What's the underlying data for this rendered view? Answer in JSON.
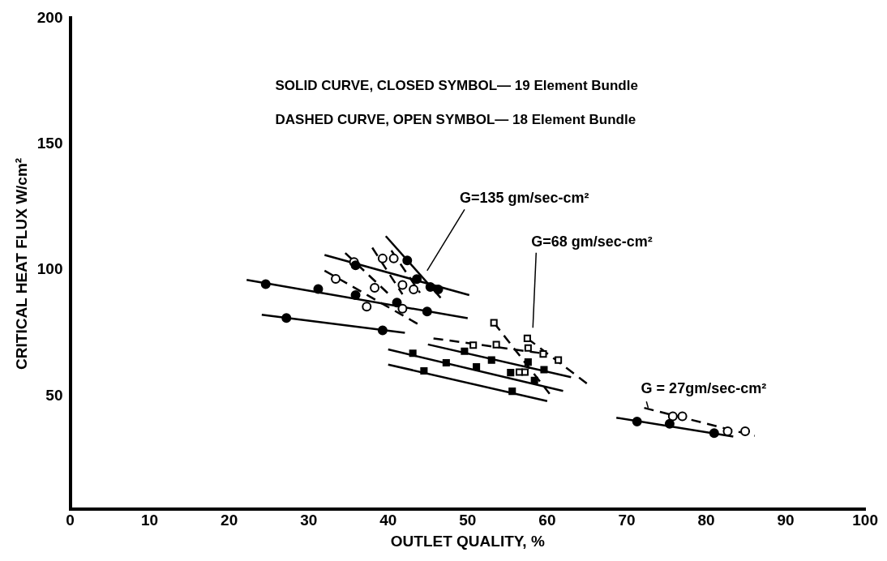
{
  "chart_data": {
    "type": "scatter",
    "xlabel": "OUTLET QUALITY, %",
    "ylabel": "CRITICAL HEAT FLUX W/cm²",
    "xlim": [
      0,
      100
    ],
    "xticks": [
      0,
      10,
      20,
      30,
      40,
      50,
      60,
      70,
      80,
      90,
      100
    ],
    "ylim": [
      5,
      200
    ],
    "yticks": [
      50,
      100,
      150,
      200
    ],
    "grid": false,
    "legend": false,
    "annotations": [
      "SOLID CURVE, CLOSED SYMBOL— 19 Element Bundle",
      "DASHED CURVE, OPEN SYMBOL— 18 Element Bundle",
      "G=135 gm/sec-cm²",
      "G=68 gm/sec-cm²",
      "G = 27gm/sec-cm²"
    ],
    "series": [
      {
        "type": "line",
        "line_style": "solid",
        "marker": "none",
        "color": "#000000",
        "x": [
          32.0,
          50.2
        ],
        "values": [
          106.0,
          90.1
        ]
      },
      {
        "type": "line",
        "line_style": "solid",
        "marker": "none",
        "color": "#000000",
        "x": [
          39.7,
          46.6
        ],
        "values": [
          113.5,
          89.0
        ]
      },
      {
        "type": "line",
        "line_style": "solid",
        "marker": "none",
        "color": "#000000",
        "x": [
          22.2,
          50.0
        ],
        "values": [
          96.1,
          80.9
        ]
      },
      {
        "type": "line",
        "line_style": "solid",
        "marker": "none",
        "color": "#000000",
        "x": [
          24.1,
          42.1
        ],
        "values": [
          82.3,
          75.1
        ]
      },
      {
        "type": "line",
        "line_style": "dashed",
        "marker": "none",
        "color": "#000000",
        "x": [
          34.6,
          40.2
        ],
        "values": [
          106.8,
          90.1
        ]
      },
      {
        "type": "line",
        "line_style": "dashed",
        "marker": "none",
        "color": "#000000",
        "x": [
          38.0,
          41.8
        ],
        "values": [
          108.9,
          90.4
        ]
      },
      {
        "type": "line",
        "line_style": "dashed",
        "marker": "none",
        "color": "#000000",
        "x": [
          40.4,
          44.0
        ],
        "values": [
          107.8,
          91.0
        ]
      },
      {
        "type": "line",
        "line_style": "dashed",
        "marker": "none",
        "color": "#000000",
        "x": [
          32.0,
          43.9
        ],
        "values": [
          99.8,
          78.3
        ]
      },
      {
        "type": "line",
        "line_style": "solid",
        "marker": "none",
        "color": "#000000",
        "x": [
          45.0,
          63.0
        ],
        "values": [
          70.5,
          57.5
        ]
      },
      {
        "type": "line",
        "line_style": "solid",
        "marker": "none",
        "color": "#000000",
        "x": [
          40.0,
          62.0
        ],
        "values": [
          68.5,
          52.0
        ]
      },
      {
        "type": "line",
        "line_style": "solid",
        "marker": "none",
        "color": "#000000",
        "x": [
          40.0,
          60.0
        ],
        "values": [
          62.5,
          48.0
        ]
      },
      {
        "type": "line",
        "line_style": "dashed",
        "marker": "none",
        "color": "#000000",
        "x": [
          45.7,
          59.3
        ],
        "values": [
          72.9,
          67.0
        ]
      },
      {
        "type": "line",
        "line_style": "dashed",
        "marker": "none",
        "color": "#000000",
        "x": [
          53.3,
          60.3
        ],
        "values": [
          79.1,
          50.9
        ]
      },
      {
        "type": "line",
        "line_style": "dashed",
        "marker": "none",
        "color": "#000000",
        "x": [
          57.5,
          65.0
        ],
        "values": [
          72.9,
          55.0
        ]
      },
      {
        "type": "line",
        "line_style": "solid",
        "marker": "none",
        "color": "#000000",
        "x": [
          68.7,
          83.4
        ],
        "values": [
          41.4,
          33.9
        ]
      },
      {
        "type": "line",
        "line_style": "dashed",
        "marker": "none",
        "color": "#000000",
        "x": [
          72.2,
          86.1
        ],
        "values": [
          45.3,
          34.2
        ]
      },
      {
        "marker": "circle",
        "color": "#000000",
        "x": [
          24.6,
          31.2,
          35.9,
          41.1,
          44.9,
          27.2,
          39.3,
          35.9,
          43.6,
          45.3,
          46.3,
          42.4
        ],
        "values": [
          94.4,
          92.5,
          90.1,
          87.1,
          83.6,
          81.0,
          76.1,
          101.9,
          96.4,
          93.3,
          92.3,
          103.8
        ]
      },
      {
        "marker": "circle",
        "color": "#ffffff",
        "x": [
          35.7,
          39.3,
          40.7,
          41.8,
          43.2,
          38.3,
          33.4,
          37.3,
          41.8
        ],
        "values": [
          103.2,
          104.6,
          104.6,
          94.1,
          92.3,
          93.0,
          96.5,
          85.5,
          84.7
        ]
      },
      {
        "marker": "square",
        "color": "#000000",
        "x": [
          49.6,
          43.1,
          47.3,
          51.1,
          53.0,
          57.6,
          59.6,
          44.5,
          55.4,
          58.4,
          55.6
        ],
        "values": [
          67.8,
          67.0,
          63.2,
          61.6,
          64.3,
          63.5,
          60.5,
          60.0,
          59.3,
          56.2,
          51.9
        ]
      },
      {
        "marker": "square",
        "color": "#ffffff",
        "x": [
          53.3,
          50.7,
          53.6,
          57.5,
          57.6,
          59.5,
          61.4,
          56.5,
          57.2
        ],
        "values": [
          79.1,
          70.2,
          70.4,
          72.9,
          69.1,
          66.7,
          64.3,
          59.5,
          59.5
        ]
      },
      {
        "marker": "circle",
        "color": "#000000",
        "x": [
          71.3,
          75.4,
          81.0
        ],
        "values": [
          39.9,
          39.0,
          35.3
        ]
      },
      {
        "marker": "circle",
        "color": "#ffffff",
        "x": [
          75.8,
          77.0,
          82.7,
          84.9
        ],
        "values": [
          42.0,
          42.0,
          36.0,
          36.0
        ]
      }
    ]
  }
}
